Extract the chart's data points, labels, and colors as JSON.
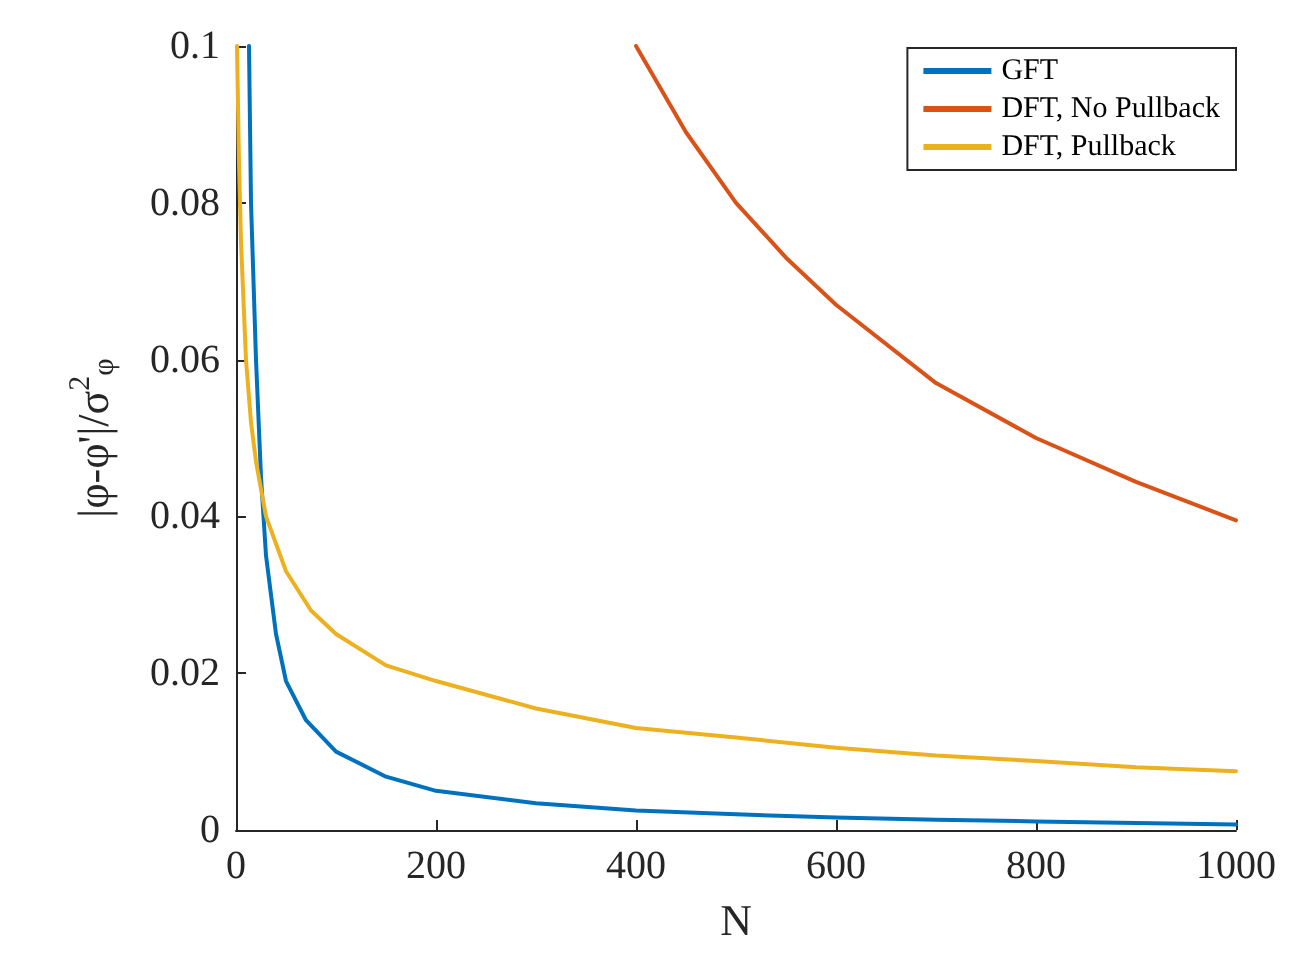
{
  "chart_data": {
    "type": "line",
    "xlabel": "N",
    "ylabel": "|φ-φ'|/σ$^{2}$$_{φ}$",
    "xlim": [
      0,
      1000
    ],
    "ylim": [
      0,
      0.1
    ],
    "xticks": [
      0,
      200,
      400,
      600,
      800,
      1000
    ],
    "yticks": [
      0,
      0.02,
      0.04,
      0.06,
      0.08,
      0.1
    ],
    "grid": false,
    "legend": "top right",
    "marker": "none",
    "line_style": "solid",
    "series": [
      {
        "name": "GFT",
        "color": "#0072bd",
        "x": [
          13,
          15,
          20,
          25,
          30,
          40,
          50,
          70,
          100,
          150,
          200,
          300,
          400,
          500,
          600,
          700,
          800,
          900,
          1000
        ],
        "values": [
          0.1,
          0.08,
          0.06,
          0.045,
          0.035,
          0.025,
          0.019,
          0.014,
          0.01,
          0.0068,
          0.005,
          0.0034,
          0.0025,
          0.002,
          0.0016,
          0.0013,
          0.0011,
          0.0009,
          0.0007
        ]
      },
      {
        "name": "DFT, No Pullback",
        "color": "#d95319",
        "x": [
          400,
          450,
          500,
          550,
          600,
          700,
          800,
          900,
          1000
        ],
        "values": [
          0.1,
          0.089,
          0.08,
          0.073,
          0.067,
          0.057,
          0.05,
          0.0444,
          0.0395
        ]
      },
      {
        "name": "DFT, Pullback",
        "color": "#edb120",
        "x": [
          1,
          3,
          5,
          10,
          15,
          20,
          30,
          50,
          75,
          100,
          150,
          200,
          300,
          400,
          500,
          600,
          700,
          800,
          900,
          1000
        ],
        "values": [
          0.1,
          0.085,
          0.075,
          0.06,
          0.052,
          0.047,
          0.04,
          0.033,
          0.028,
          0.025,
          0.021,
          0.019,
          0.0155,
          0.013,
          0.0118,
          0.0105,
          0.0095,
          0.0088,
          0.008,
          0.0075
        ]
      }
    ]
  }
}
